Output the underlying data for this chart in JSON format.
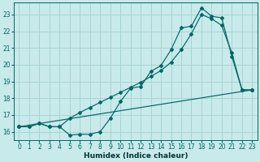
{
  "xlabel": "Humidex (Indice chaleur)",
  "bg_color": "#c8eaea",
  "grid_color": "#a8d4d4",
  "line_color": "#006666",
  "xlim": [
    -0.5,
    23.5
  ],
  "ylim": [
    15.5,
    23.7
  ],
  "xticks": [
    0,
    1,
    2,
    3,
    4,
    5,
    6,
    7,
    8,
    9,
    10,
    11,
    12,
    13,
    14,
    15,
    16,
    17,
    18,
    19,
    20,
    21,
    22,
    23
  ],
  "yticks": [
    16,
    17,
    18,
    19,
    20,
    21,
    22,
    23
  ],
  "curve1_x": [
    0,
    1,
    2,
    3,
    4,
    5,
    6,
    7,
    8,
    9,
    10,
    11,
    12,
    13,
    14,
    15,
    16,
    17,
    18,
    19,
    20,
    21,
    22,
    23
  ],
  "curve1_y": [
    16.3,
    16.3,
    16.5,
    16.3,
    16.3,
    15.8,
    15.85,
    15.85,
    16.0,
    16.8,
    17.8,
    18.6,
    18.7,
    19.6,
    19.95,
    20.9,
    22.2,
    22.3,
    23.4,
    22.9,
    22.8,
    20.5,
    18.5,
    18.5
  ],
  "curve2_x": [
    0,
    1,
    2,
    3,
    4,
    5,
    6,
    7,
    8,
    9,
    10,
    11,
    12,
    13,
    14,
    15,
    16,
    17,
    18,
    19,
    20,
    21,
    22,
    23
  ],
  "curve2_y": [
    16.3,
    16.3,
    16.5,
    16.3,
    16.3,
    16.8,
    17.15,
    17.45,
    17.75,
    18.05,
    18.35,
    18.65,
    18.95,
    19.3,
    19.65,
    20.15,
    20.9,
    21.85,
    23.0,
    22.75,
    22.35,
    20.7,
    18.5,
    18.5
  ],
  "curve3_x": [
    0,
    23
  ],
  "curve3_y": [
    16.3,
    18.5
  ],
  "xlabel_fontsize": 6.5,
  "tick_fontsize": 5.5,
  "xlabel_color": "#003333"
}
